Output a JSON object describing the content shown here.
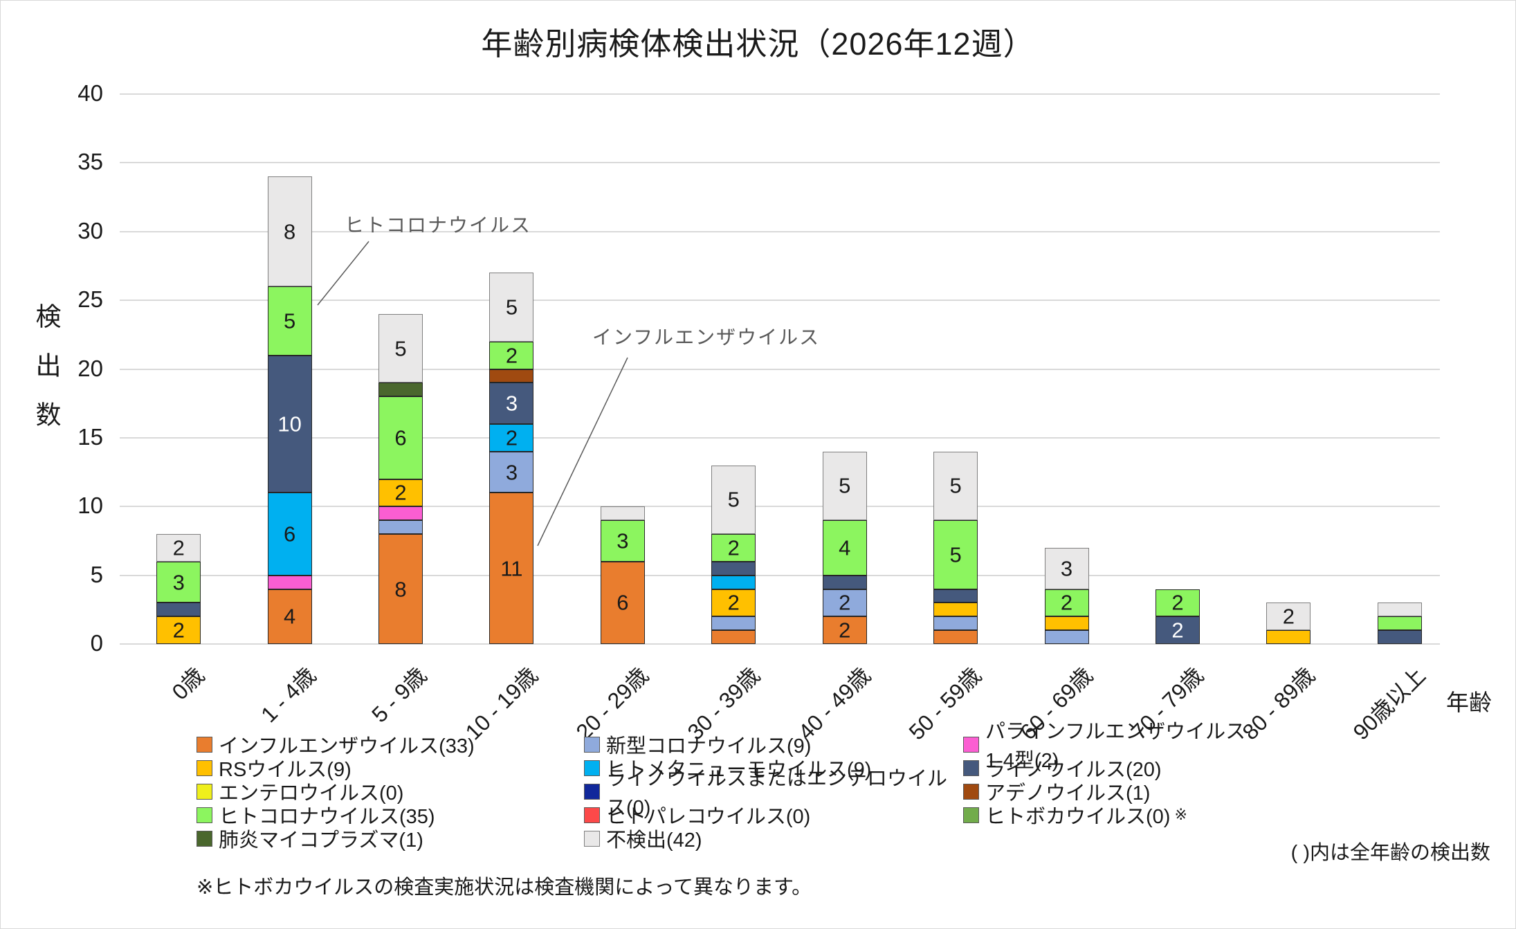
{
  "title": "年齢別病検体検出状況（2026年12週）",
  "notes": {
    "legend_note": "( )内は全年齢の検出数",
    "footnote": "※ヒトボカウイルスの検査実施状況は検査機関によって異なります。"
  },
  "chart_data": {
    "type": "bar",
    "stacked": true,
    "title": "年齢別病検体検出状況（2026年12週）",
    "ylabel": "検出数",
    "xlabel": "年齢",
    "ylim": [
      0,
      40
    ],
    "ytick_step": 5,
    "grid": true,
    "legend_position": "bottom",
    "legend_columns": 3,
    "segment_label_min_value": 2,
    "categories": [
      "0歳",
      "1 - 4歳",
      "5 - 9歳",
      "10 - 19歳",
      "20 - 29歳",
      "30 - 39歳",
      "40 - 49歳",
      "50 - 59歳",
      "60 - 69歳",
      "70 - 79歳",
      "80 - 89歳",
      "90歳以上"
    ],
    "series": [
      {
        "name": "インフルエンザウイルス(33)",
        "color": "#E97D2E",
        "values": [
          0,
          4,
          8,
          11,
          6,
          1,
          2,
          1,
          0,
          0,
          0,
          0
        ]
      },
      {
        "name": "新型コロナウイルス(9)",
        "color": "#8FAADC",
        "values": [
          0,
          0,
          1,
          3,
          0,
          1,
          2,
          1,
          1,
          0,
          0,
          0
        ]
      },
      {
        "name": "パラインフルエンザウイルス1-4型(2)",
        "color": "#FB5ED2",
        "values": [
          0,
          1,
          1,
          0,
          0,
          0,
          0,
          0,
          0,
          0,
          0,
          0
        ]
      },
      {
        "name": "RSウイルス(9)",
        "color": "#FFC000",
        "values": [
          2,
          0,
          2,
          0,
          0,
          2,
          0,
          1,
          1,
          0,
          1,
          0
        ]
      },
      {
        "name": "ヒトメタニューモウイルス(9)",
        "color": "#00B0F0",
        "values": [
          0,
          6,
          0,
          2,
          0,
          1,
          0,
          0,
          0,
          0,
          0,
          0
        ]
      },
      {
        "name": "ライノウイルス(20)",
        "color": "#45597D",
        "label_color": "#ffffff",
        "values": [
          1,
          10,
          0,
          3,
          0,
          1,
          1,
          1,
          0,
          2,
          0,
          1
        ]
      },
      {
        "name": "エンテロウイルス(0)",
        "color": "#EFEF1C",
        "values": [
          0,
          0,
          0,
          0,
          0,
          0,
          0,
          0,
          0,
          0,
          0,
          0
        ]
      },
      {
        "name": "ライノウイルスまたはエンテロウイルス(0)",
        "color": "#11289B",
        "values": [
          0,
          0,
          0,
          0,
          0,
          0,
          0,
          0,
          0,
          0,
          0,
          0
        ]
      },
      {
        "name": "アデノウイルス(1)",
        "color": "#A04A10",
        "values": [
          0,
          0,
          0,
          1,
          0,
          0,
          0,
          0,
          0,
          0,
          0,
          0
        ]
      },
      {
        "name": "ヒトコロナウイルス(35)",
        "color": "#8CF55F",
        "values": [
          3,
          5,
          6,
          2,
          3,
          2,
          4,
          5,
          2,
          2,
          0,
          1
        ]
      },
      {
        "name": "ヒトパレコウイルス(0)",
        "color": "#FC4949",
        "values": [
          0,
          0,
          0,
          0,
          0,
          0,
          0,
          0,
          0,
          0,
          0,
          0
        ]
      },
      {
        "name": "ヒトボカウイルス(0)",
        "color": "#72AC4B",
        "legend_suffix": "※",
        "values": [
          0,
          0,
          0,
          0,
          0,
          0,
          0,
          0,
          0,
          0,
          0,
          0
        ]
      },
      {
        "name": "肺炎マイコプラズマ(1)",
        "color": "#4A672D",
        "values": [
          0,
          0,
          1,
          0,
          0,
          0,
          0,
          0,
          0,
          0,
          0,
          0
        ]
      },
      {
        "name": "不検出(42)",
        "color": "#E9E8E8",
        "border_color": "#7F7F7F",
        "values": [
          2,
          8,
          5,
          5,
          1,
          5,
          5,
          5,
          3,
          0,
          2,
          1
        ]
      }
    ],
    "annotations": [
      {
        "text": "ヒトコロナウイルス",
        "target_series": "ヒトコロナウイルス(35)",
        "target_category": "1 - 4歳",
        "x": 497,
        "y": 303,
        "line": [
          532,
          348,
          458,
          440
        ]
      },
      {
        "text": "インフルエンザウイルス",
        "target_series": "インフルエンザウイルス(33)",
        "target_category": "10 - 19歳",
        "x": 855,
        "y": 465,
        "line": [
          906,
          516,
          776,
          788
        ]
      }
    ]
  }
}
